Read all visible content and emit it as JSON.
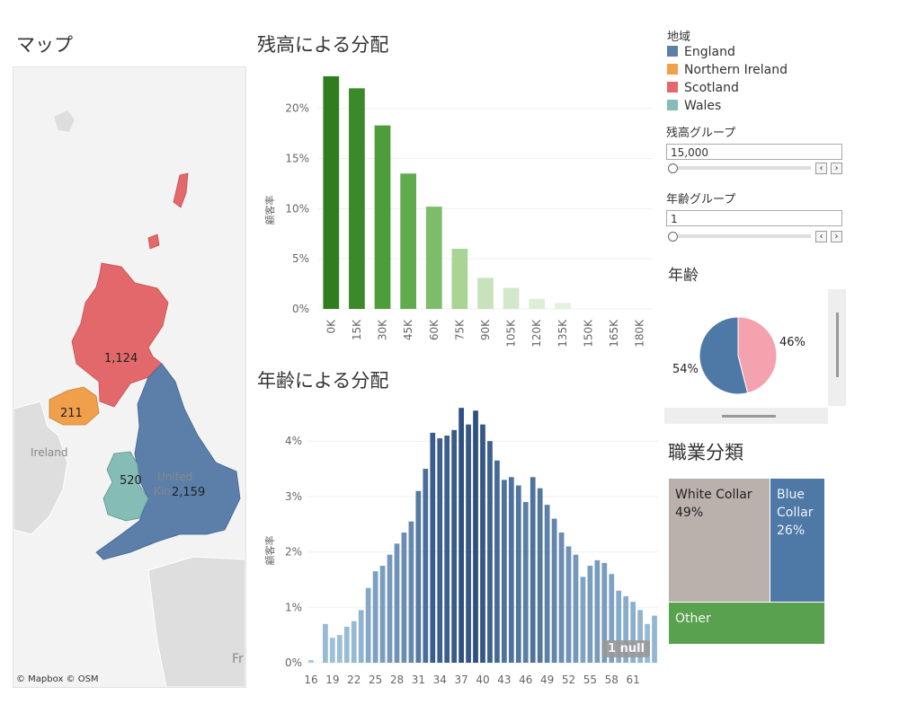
{
  "map": {
    "title": "マップ",
    "credit": "© Mapbox © OSM",
    "labels": {
      "scotland": "1,124",
      "northern_ireland": "211",
      "wales": "520",
      "england": "2,159"
    },
    "basemap_labels": {
      "ireland": "Ireland",
      "uk_line1": "United",
      "uk_line2": "Kin",
      "france_fragment": "Fr"
    }
  },
  "balance_chart": {
    "title": "残高による分配"
  },
  "age_chart": {
    "title": "年齢による分配",
    "null_badge": "1 null"
  },
  "legend": {
    "title": "地域",
    "items": [
      {
        "label": "England",
        "color": "#5b7fa8"
      },
      {
        "label": "Northern Ireland",
        "color": "#f0a04b"
      },
      {
        "label": "Scotland",
        "color": "#e3686b"
      },
      {
        "label": "Wales",
        "color": "#86bcb6"
      }
    ]
  },
  "filters": {
    "balance_group": {
      "label": "残高グループ",
      "value": "15,000"
    },
    "age_group": {
      "label": "年齢グループ",
      "value": "1"
    },
    "prev_glyph": "‹",
    "next_glyph": "›"
  },
  "pie": {
    "title": "年齢",
    "slices": [
      {
        "label": "46%",
        "value": 46,
        "color": "#f4a2ad"
      },
      {
        "label": "54%",
        "value": 54,
        "color": "#4e79a7"
      }
    ]
  },
  "treemap": {
    "title": "職業分類",
    "cells": [
      {
        "name": "White Collar",
        "pct": "49%",
        "color": "#bab0ac"
      },
      {
        "name": "Blue Collar",
        "name_line1": "Blue",
        "name_line2": "Collar",
        "pct": "26%",
        "color": "#4e79a7"
      },
      {
        "name": "Other",
        "color": "#59a14f"
      }
    ]
  },
  "chart_data": [
    {
      "type": "bar",
      "title": "残高による分配",
      "ylabel": "顧客率",
      "ylim": [
        0,
        24
      ],
      "yticks": [
        "0%",
        "5%",
        "10%",
        "15%",
        "20%"
      ],
      "categories": [
        "0K",
        "15K",
        "30K",
        "45K",
        "60K",
        "75K",
        "90K",
        "105K",
        "120K",
        "135K",
        "150K",
        "165K",
        "180K"
      ],
      "values": [
        23.2,
        22.0,
        18.3,
        13.5,
        10.2,
        6.0,
        3.1,
        2.1,
        1.0,
        0.6,
        0,
        0,
        0
      ],
      "colors": [
        "#2e7d1f",
        "#3a8a2a",
        "#4e9c3c",
        "#61ab4e",
        "#7bbd68",
        "#a9d496",
        "#c8e2bc",
        "#d3e8cb",
        "#dceeD6",
        "#e3f1df",
        "#e8f3e4",
        "#eaf4e6",
        "#ecf5e8"
      ]
    },
    {
      "type": "bar",
      "title": "年齢による分配",
      "ylabel": "顧客率",
      "ylim": [
        0,
        4.7
      ],
      "yticks": [
        "0%",
        "1%",
        "2%",
        "3%",
        "4%"
      ],
      "x_tick_labels": [
        "16",
        "19",
        "22",
        "25",
        "28",
        "31",
        "34",
        "37",
        "40",
        "43",
        "46",
        "49",
        "52",
        "55",
        "58",
        "61"
      ],
      "x": [
        16,
        17,
        18,
        19,
        20,
        21,
        22,
        23,
        24,
        25,
        26,
        27,
        28,
        29,
        30,
        31,
        32,
        33,
        34,
        35,
        36,
        37,
        38,
        39,
        40,
        41,
        42,
        43,
        44,
        45,
        46,
        47,
        48,
        49,
        50,
        51,
        52,
        53,
        54,
        55,
        56,
        57,
        58,
        59,
        60,
        61,
        62,
        63,
        64
      ],
      "values": [
        0.05,
        0.0,
        0.7,
        0.45,
        0.5,
        0.65,
        0.75,
        0.95,
        1.35,
        1.65,
        1.75,
        1.95,
        2.15,
        2.35,
        2.55,
        3.1,
        3.5,
        4.15,
        4.05,
        4.1,
        4.2,
        4.6,
        4.3,
        4.55,
        4.3,
        4.0,
        3.65,
        3.3,
        3.35,
        3.2,
        2.9,
        3.35,
        3.15,
        2.85,
        2.6,
        2.35,
        2.1,
        1.95,
        1.55,
        1.75,
        1.85,
        1.8,
        1.6,
        1.3,
        1.2,
        1.1,
        0.95,
        0.7,
        0.85
      ]
    }
  ]
}
